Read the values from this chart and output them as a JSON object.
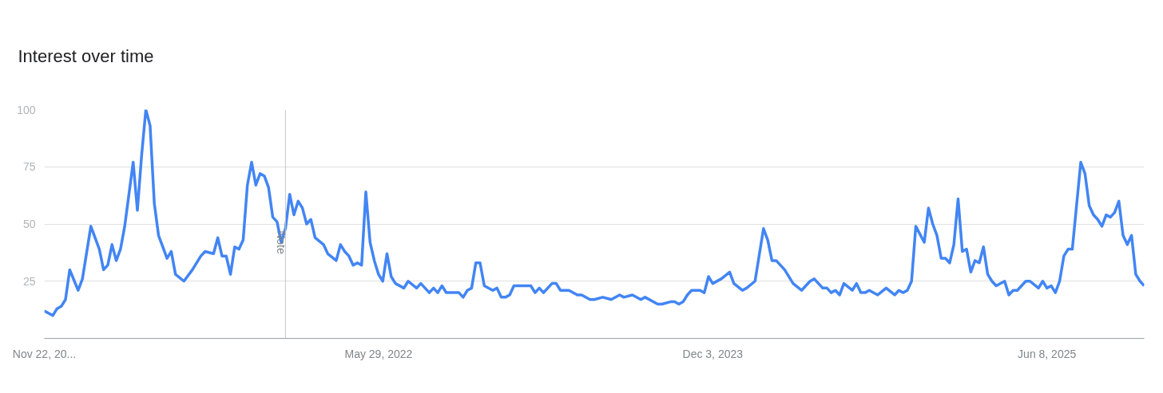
{
  "chart_data": {
    "type": "line",
    "title": "Interest over time",
    "x": [
      "2020-11-22",
      "2020-12-06",
      "2020-12-13",
      "2020-12-20",
      "2020-12-27",
      "2021-01-03",
      "2021-01-17",
      "2021-01-24",
      "2021-02-07",
      "2021-02-21",
      "2021-02-28",
      "2021-03-07",
      "2021-03-14",
      "2021-03-21",
      "2021-03-28",
      "2021-04-04",
      "2021-04-18",
      "2021-04-25",
      "2021-05-02",
      "2021-05-09",
      "2021-05-16",
      "2021-05-23",
      "2021-05-30",
      "2021-06-06",
      "2021-06-13",
      "2021-06-20",
      "2021-06-27",
      "2021-07-11",
      "2021-07-25",
      "2021-08-08",
      "2021-08-15",
      "2021-08-29",
      "2021-09-05",
      "2021-09-12",
      "2021-09-19",
      "2021-09-26",
      "2021-10-03",
      "2021-10-10",
      "2021-10-17",
      "2021-10-24",
      "2021-10-31",
      "2021-11-07",
      "2021-11-14",
      "2021-11-21",
      "2021-11-28",
      "2021-12-05",
      "2021-12-12",
      "2021-12-19",
      "2021-12-26",
      "2022-01-02",
      "2022-01-09",
      "2022-01-16",
      "2022-01-23",
      "2022-01-30",
      "2022-02-06",
      "2022-02-13",
      "2022-02-27",
      "2022-03-06",
      "2022-03-20",
      "2022-03-27",
      "2022-04-03",
      "2022-04-10",
      "2022-04-17",
      "2022-04-24",
      "2022-05-01",
      "2022-05-08",
      "2022-05-15",
      "2022-05-22",
      "2022-05-29",
      "2022-06-05",
      "2022-06-12",
      "2022-06-19",
      "2022-06-26",
      "2022-07-10",
      "2022-07-17",
      "2022-07-31",
      "2022-08-07",
      "2022-08-21",
      "2022-08-28",
      "2022-09-04",
      "2022-09-11",
      "2022-09-18",
      "2022-10-09",
      "2022-10-16",
      "2022-10-23",
      "2022-10-30",
      "2022-11-06",
      "2022-11-13",
      "2022-11-20",
      "2022-12-04",
      "2022-12-11",
      "2022-12-18",
      "2022-12-25",
      "2023-01-01",
      "2023-01-08",
      "2023-02-05",
      "2023-02-12",
      "2023-02-19",
      "2023-02-26",
      "2023-03-12",
      "2023-03-19",
      "2023-03-26",
      "2023-04-09",
      "2023-04-23",
      "2023-04-30",
      "2023-05-14",
      "2023-05-21",
      "2023-06-04",
      "2023-06-18",
      "2023-07-02",
      "2023-07-09",
      "2023-07-23",
      "2023-08-06",
      "2023-08-13",
      "2023-09-03",
      "2023-09-10",
      "2023-09-24",
      "2023-10-01",
      "2023-10-08",
      "2023-10-15",
      "2023-10-22",
      "2023-10-29",
      "2023-11-12",
      "2023-11-19",
      "2023-11-26",
      "2023-12-03",
      "2023-12-17",
      "2023-12-31",
      "2024-01-07",
      "2024-01-21",
      "2024-01-28",
      "2024-02-11",
      "2024-02-25",
      "2024-03-03",
      "2024-03-10",
      "2024-03-17",
      "2024-03-31",
      "2024-04-14",
      "2024-04-28",
      "2024-05-12",
      "2024-05-19",
      "2024-06-02",
      "2024-06-09",
      "2024-06-16",
      "2024-06-23",
      "2024-06-30",
      "2024-07-07",
      "2024-07-21",
      "2024-07-28",
      "2024-08-04",
      "2024-08-11",
      "2024-08-18",
      "2024-09-01",
      "2024-09-15",
      "2024-09-29",
      "2024-10-06",
      "2024-10-13",
      "2024-10-20",
      "2024-10-27",
      "2024-11-03",
      "2024-11-17",
      "2024-11-24",
      "2024-12-01",
      "2024-12-08",
      "2024-12-15",
      "2024-12-22",
      "2024-12-29",
      "2025-01-05",
      "2025-01-12",
      "2025-01-19",
      "2025-01-26",
      "2025-02-02",
      "2025-02-09",
      "2025-02-16",
      "2025-02-23",
      "2025-03-02",
      "2025-03-09",
      "2025-03-16",
      "2025-03-30",
      "2025-04-06",
      "2025-04-13",
      "2025-04-20",
      "2025-05-04",
      "2025-05-11",
      "2025-05-25",
      "2025-06-01",
      "2025-06-08",
      "2025-06-15",
      "2025-06-22",
      "2025-06-29",
      "2025-07-06",
      "2025-07-13",
      "2025-07-20",
      "2025-08-03",
      "2025-08-10",
      "2025-08-17",
      "2025-08-24",
      "2025-08-31",
      "2025-09-07",
      "2025-09-14",
      "2025-09-21",
      "2025-09-28",
      "2025-10-05",
      "2025-10-12",
      "2025-10-19",
      "2025-10-26",
      "2025-11-02",
      "2025-11-09",
      "2025-11-16"
    ],
    "series": [
      {
        "color": "#4285f4",
        "values": [
          12,
          10,
          13,
          14,
          17,
          30,
          21,
          26,
          49,
          39,
          30,
          32,
          41,
          34,
          39,
          49,
          77,
          56,
          80,
          100,
          93,
          59,
          45,
          40,
          35,
          38,
          28,
          25,
          30,
          36,
          38,
          37,
          44,
          36,
          36,
          28,
          40,
          39,
          43,
          67,
          77,
          67,
          72,
          71,
          66,
          53,
          51,
          42,
          48,
          63,
          54,
          60,
          57,
          50,
          52,
          44,
          41,
          37,
          34,
          41,
          38,
          36,
          32,
          33,
          32,
          64,
          42,
          34,
          28,
          25,
          37,
          27,
          24,
          22,
          25,
          22,
          24,
          20,
          22,
          20,
          23,
          20,
          20,
          18,
          21,
          22,
          33,
          33,
          23,
          21,
          22,
          18,
          18,
          19,
          23,
          23,
          20,
          22,
          20,
          24,
          24,
          21,
          21,
          19,
          19,
          17,
          17,
          18,
          17,
          19,
          18,
          19,
          17,
          18,
          15,
          15,
          16,
          16,
          15,
          16,
          19,
          21,
          21,
          20,
          27,
          24,
          26,
          29,
          24,
          21,
          22,
          25,
          48,
          43,
          34,
          34,
          30,
          24,
          21,
          25,
          26,
          22,
          22,
          20,
          21,
          19,
          24,
          21,
          24,
          20,
          20,
          21,
          19,
          22,
          19,
          21,
          20,
          21,
          25,
          49,
          42,
          57,
          50,
          45,
          35,
          35,
          33,
          41,
          61,
          38,
          39,
          29,
          34,
          33,
          40,
          28,
          25,
          23,
          25,
          19,
          21,
          21,
          25,
          25,
          22,
          25,
          22,
          23,
          20,
          25,
          36,
          39,
          39,
          77,
          72,
          58,
          54,
          52,
          49,
          54,
          53,
          55,
          60,
          45,
          41,
          45,
          28,
          25,
          23
        ]
      }
    ],
    "xlim": [
      "2020-11-22",
      "2025-11-16"
    ],
    "xticks": [
      {
        "value": "2020-11-22",
        "label": "Nov 22, 20..."
      },
      {
        "value": "2022-05-29",
        "label": "May 29, 2022"
      },
      {
        "value": "2023-12-03",
        "label": "Dec 3, 2023"
      },
      {
        "value": "2025-06-08",
        "label": "Jun 8, 2025"
      }
    ],
    "ylim": [
      0,
      100
    ],
    "yticks": [
      25,
      50,
      75,
      100
    ],
    "grid": "y",
    "marker": "none",
    "line_style": "solid",
    "ref_lines": [
      {
        "axis": "x",
        "value": "2021-12-26",
        "label": "Note",
        "color": "#c6c6c6"
      }
    ]
  }
}
